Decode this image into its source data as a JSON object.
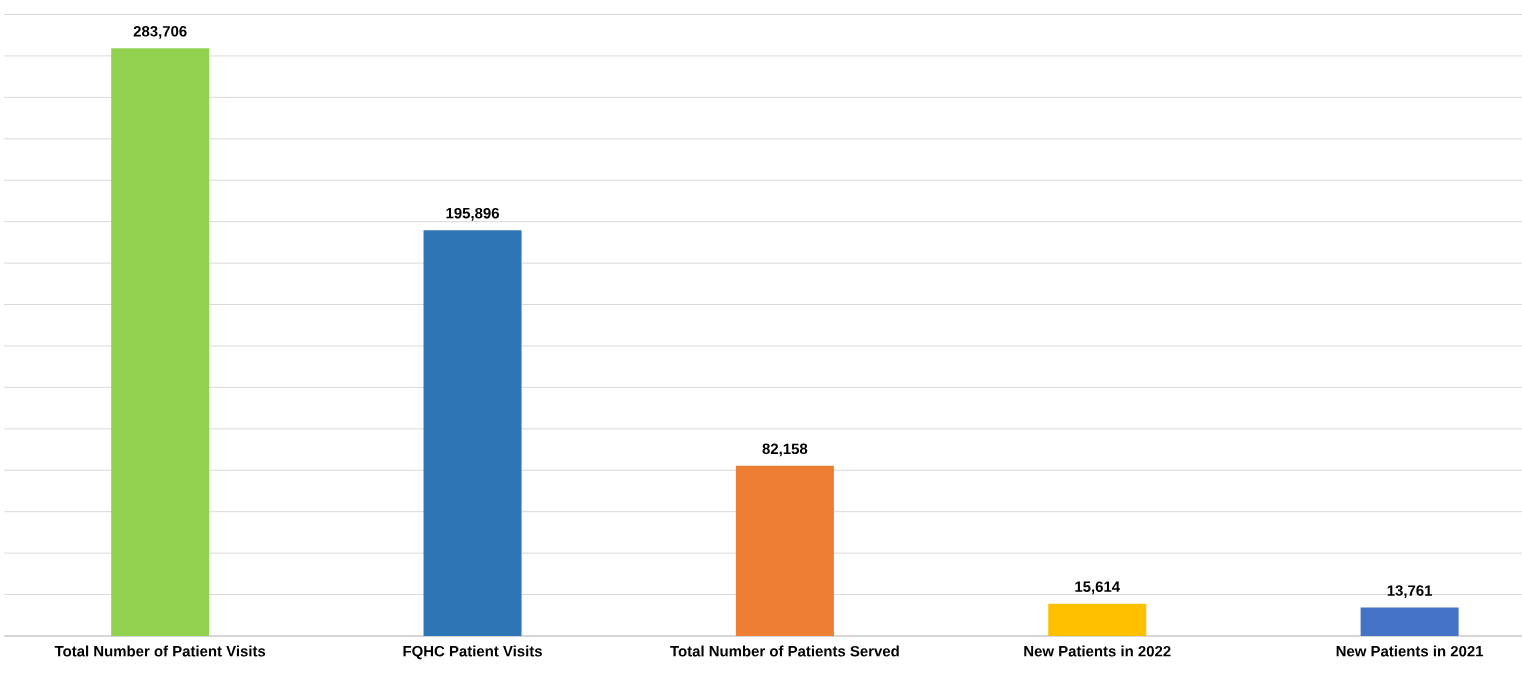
{
  "chart_data": {
    "type": "bar",
    "categories": [
      "Total Number of Patient Visits",
      "FQHC Patient Visits",
      "Total Number of Patients Served",
      "New Patients in 2022",
      "New Patients in 2021"
    ],
    "values": [
      283706,
      195896,
      82158,
      15614,
      13761
    ],
    "value_labels": [
      "283,706",
      "195,896",
      "82,158",
      "15,614",
      "13,761"
    ],
    "colors": [
      "#92d050",
      "#2e75b6",
      "#ed7d31",
      "#ffc000",
      "#4472c4"
    ],
    "grid": "y"
  }
}
